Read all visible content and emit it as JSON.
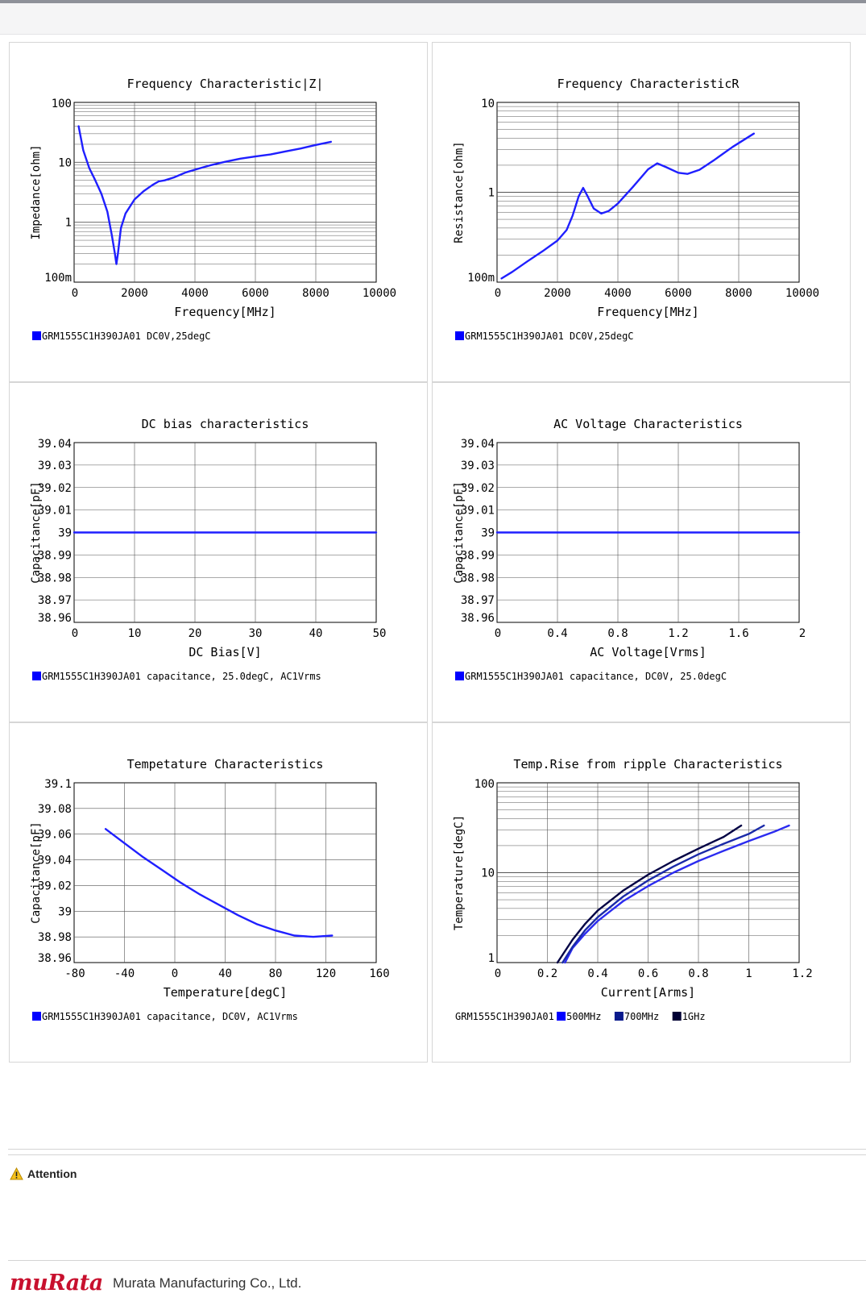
{
  "attention": {
    "label": "Attention",
    "icon": "warning-icon"
  },
  "footer": {
    "logo": "muRata",
    "company": "Murata Manufacturing Co., Ltd."
  },
  "chart_data": [
    {
      "id": "freq-z",
      "type": "line",
      "title": "Frequency  Characteristic|Z|",
      "xlabel": "Frequency[MHz]",
      "ylabel": "Impedance[ohm]",
      "xscale": "linear",
      "yscale": "log",
      "xlim": [
        0,
        10000
      ],
      "ylim": [
        0.1,
        100
      ],
      "xticks": [
        "0",
        "2000",
        "4000",
        "6000",
        "8000",
        "10000"
      ],
      "yticks": [
        {
          "v": 0.1,
          "l": "100m"
        },
        {
          "v": 1,
          "l": "1"
        },
        {
          "v": 10,
          "l": "10"
        },
        {
          "v": 100,
          "l": "100"
        }
      ],
      "grid": true,
      "legend": {
        "prefix": "",
        "entries": [
          {
            "label": "GRM1555C1H390JA01 DC0V,25degC",
            "color": "#0000ff"
          }
        ]
      },
      "series": [
        {
          "color": "#1f1fff",
          "x": [
            150,
            300,
            500,
            700,
            900,
            1100,
            1250,
            1350,
            1400,
            1450,
            1550,
            1700,
            2000,
            2300,
            2600,
            2800,
            3000,
            3300,
            3700,
            4100,
            4500,
            5000,
            5500,
            6000,
            6500,
            7000,
            7500,
            8000,
            8500
          ],
          "y": [
            40,
            16,
            8,
            5,
            3,
            1.5,
            0.6,
            0.3,
            0.2,
            0.3,
            0.8,
            1.4,
            2.4,
            3.3,
            4.2,
            4.8,
            5,
            5.6,
            6.8,
            7.8,
            8.9,
            10.2,
            11.5,
            12.5,
            13.5,
            15.2,
            17,
            19.5,
            22
          ]
        }
      ]
    },
    {
      "id": "freq-r",
      "type": "line",
      "title": "Frequency  CharacteristicR",
      "xlabel": "Frequency[MHz]",
      "ylabel": "Resistance[ohm]",
      "xscale": "linear",
      "yscale": "log",
      "xlim": [
        0,
        10000
      ],
      "ylim": [
        0.1,
        10
      ],
      "xticks": [
        "0",
        "2000",
        "4000",
        "6000",
        "8000",
        "10000"
      ],
      "yticks": [
        {
          "v": 0.1,
          "l": "100m"
        },
        {
          "v": 1,
          "l": "1"
        },
        {
          "v": 10,
          "l": "10"
        }
      ],
      "grid": true,
      "legend": {
        "prefix": "",
        "entries": [
          {
            "label": "GRM1555C1H390JA01 DC0V,25degC",
            "color": "#0000ff"
          }
        ]
      },
      "series": [
        {
          "color": "#1f1fff",
          "x": [
            150,
            500,
            1000,
            1500,
            2000,
            2300,
            2500,
            2700,
            2850,
            3000,
            3200,
            3450,
            3700,
            4000,
            4500,
            5000,
            5300,
            5600,
            6000,
            6300,
            6700,
            7200,
            7800,
            8500
          ],
          "y": [
            0.11,
            0.13,
            0.17,
            0.22,
            0.29,
            0.38,
            0.55,
            0.9,
            1.12,
            0.9,
            0.66,
            0.58,
            0.62,
            0.75,
            1.15,
            1.8,
            2.1,
            1.9,
            1.65,
            1.6,
            1.78,
            2.3,
            3.2,
            4.5
          ]
        }
      ]
    },
    {
      "id": "dc-bias",
      "type": "line",
      "title": "DC bias characteristics",
      "xlabel": "DC Bias[V]",
      "ylabel": "Capacitance[pF]",
      "xscale": "linear",
      "yscale": "linear",
      "xlim": [
        0,
        50
      ],
      "ylim": [
        38.96,
        39.04
      ],
      "xticks": [
        "0",
        "10",
        "20",
        "30",
        "40",
        "50"
      ],
      "yticks": [
        {
          "v": 38.96,
          "l": "38.96"
        },
        {
          "v": 38.97,
          "l": "38.97"
        },
        {
          "v": 38.98,
          "l": "38.98"
        },
        {
          "v": 38.99,
          "l": "38.99"
        },
        {
          "v": 39.0,
          "l": "39"
        },
        {
          "v": 39.01,
          "l": "39.01"
        },
        {
          "v": 39.02,
          "l": "39.02"
        },
        {
          "v": 39.03,
          "l": "39.03"
        },
        {
          "v": 39.04,
          "l": "39.04"
        }
      ],
      "grid": true,
      "legend": {
        "prefix": "",
        "entries": [
          {
            "label": "GRM1555C1H390JA01 capacitance, 25.0degC, AC1Vrms",
            "color": "#0000ff"
          }
        ]
      },
      "series": [
        {
          "color": "#1f1fff",
          "x": [
            0,
            50
          ],
          "y": [
            39.0,
            39.0
          ]
        }
      ]
    },
    {
      "id": "ac-voltage",
      "type": "line",
      "title": "AC Voltage Characteristics",
      "xlabel": "AC Voltage[Vrms]",
      "ylabel": "Capacitance[pF]",
      "xscale": "linear",
      "yscale": "linear",
      "xlim": [
        0,
        2
      ],
      "ylim": [
        38.96,
        39.04
      ],
      "xticks": [
        "0",
        "0.4",
        "0.8",
        "1.2",
        "1.6",
        "2"
      ],
      "yticks": [
        {
          "v": 38.96,
          "l": "38.96"
        },
        {
          "v": 38.97,
          "l": "38.97"
        },
        {
          "v": 38.98,
          "l": "38.98"
        },
        {
          "v": 38.99,
          "l": "38.99"
        },
        {
          "v": 39.0,
          "l": "39"
        },
        {
          "v": 39.01,
          "l": "39.01"
        },
        {
          "v": 39.02,
          "l": "39.02"
        },
        {
          "v": 39.03,
          "l": "39.03"
        },
        {
          "v": 39.04,
          "l": "39.04"
        }
      ],
      "grid": true,
      "legend": {
        "prefix": "",
        "entries": [
          {
            "label": "GRM1555C1H390JA01 capacitance, DC0V, 25.0degC",
            "color": "#0000ff"
          }
        ]
      },
      "series": [
        {
          "color": "#1f1fff",
          "x": [
            0,
            2
          ],
          "y": [
            39.0,
            39.0
          ]
        }
      ]
    },
    {
      "id": "temperature",
      "type": "line",
      "title": "Tempetature  Characteristics",
      "xlabel": "Temperature[degC]",
      "ylabel": "Capacitance[pF]",
      "xscale": "linear",
      "yscale": "linear",
      "xlim": [
        -80,
        160
      ],
      "ylim": [
        38.96,
        39.1
      ],
      "xticks": [
        "-80",
        "-40",
        "0",
        "40",
        "80",
        "120",
        "160"
      ],
      "yticks": [
        {
          "v": 38.96,
          "l": "38.96"
        },
        {
          "v": 38.98,
          "l": "38.98"
        },
        {
          "v": 39.0,
          "l": "39"
        },
        {
          "v": 39.02,
          "l": "39.02"
        },
        {
          "v": 39.04,
          "l": "39.04"
        },
        {
          "v": 39.06,
          "l": "39.06"
        },
        {
          "v": 39.08,
          "l": "39.08"
        },
        {
          "v": 39.1,
          "l": "39.1"
        }
      ],
      "grid": true,
      "legend": {
        "prefix": "",
        "entries": [
          {
            "label": "GRM1555C1H390JA01 capacitance, DC0V, AC1Vrms",
            "color": "#0000ff"
          }
        ]
      },
      "series": [
        {
          "color": "#1f1fff",
          "x": [
            -55,
            -40,
            -25,
            -10,
            5,
            20,
            35,
            50,
            65,
            80,
            95,
            110,
            125
          ],
          "y": [
            39.064,
            39.053,
            39.042,
            39.032,
            39.022,
            39.013,
            39.005,
            38.997,
            38.99,
            38.985,
            38.981,
            38.98,
            38.981
          ]
        }
      ]
    },
    {
      "id": "temp-rise",
      "type": "line",
      "title": "Temp.Rise from ripple Characteristics",
      "xlabel": "Current[Arms]",
      "ylabel": "Temperature[degC]",
      "xscale": "linear",
      "yscale": "log",
      "xlim": [
        0,
        1.2
      ],
      "ylim": [
        1,
        100
      ],
      "xticks": [
        "0",
        "0.2",
        "0.4",
        "0.6",
        "0.8",
        "1",
        "1.2"
      ],
      "yticks": [
        {
          "v": 1,
          "l": "1"
        },
        {
          "v": 10,
          "l": "10"
        },
        {
          "v": 100,
          "l": "100"
        }
      ],
      "grid": true,
      "legend": {
        "prefix": "GRM1555C1H390JA01",
        "entries": [
          {
            "label": "500MHz",
            "color": "#0000ff"
          },
          {
            "label": "700MHz",
            "color": "#0a1a8c"
          },
          {
            "label": "1GHz",
            "color": "#000033"
          }
        ]
      },
      "series": [
        {
          "name": "500MHz",
          "color": "#2b2bf0",
          "x": [
            0.27,
            0.3,
            0.35,
            0.4,
            0.5,
            0.6,
            0.7,
            0.8,
            0.9,
            1.0,
            1.1,
            1.16
          ],
          "y": [
            1,
            1.45,
            2.1,
            2.9,
            4.8,
            7.1,
            10,
            13.5,
            17.5,
            22.5,
            28.5,
            33.5
          ]
        },
        {
          "name": "700MHz",
          "color": "#1a2aa8",
          "x": [
            0.26,
            0.3,
            0.35,
            0.4,
            0.5,
            0.6,
            0.7,
            0.8,
            0.9,
            1.0,
            1.06
          ],
          "y": [
            1,
            1.5,
            2.3,
            3.2,
            5.4,
            8.2,
            11.7,
            16,
            21,
            27,
            33.5
          ]
        },
        {
          "name": "1GHz",
          "color": "#000044",
          "x": [
            0.24,
            0.3,
            0.35,
            0.4,
            0.5,
            0.6,
            0.7,
            0.8,
            0.9,
            0.97
          ],
          "y": [
            1,
            1.8,
            2.7,
            3.8,
            6.3,
            9.5,
            13.5,
            18.5,
            25,
            33.5
          ]
        }
      ]
    }
  ]
}
